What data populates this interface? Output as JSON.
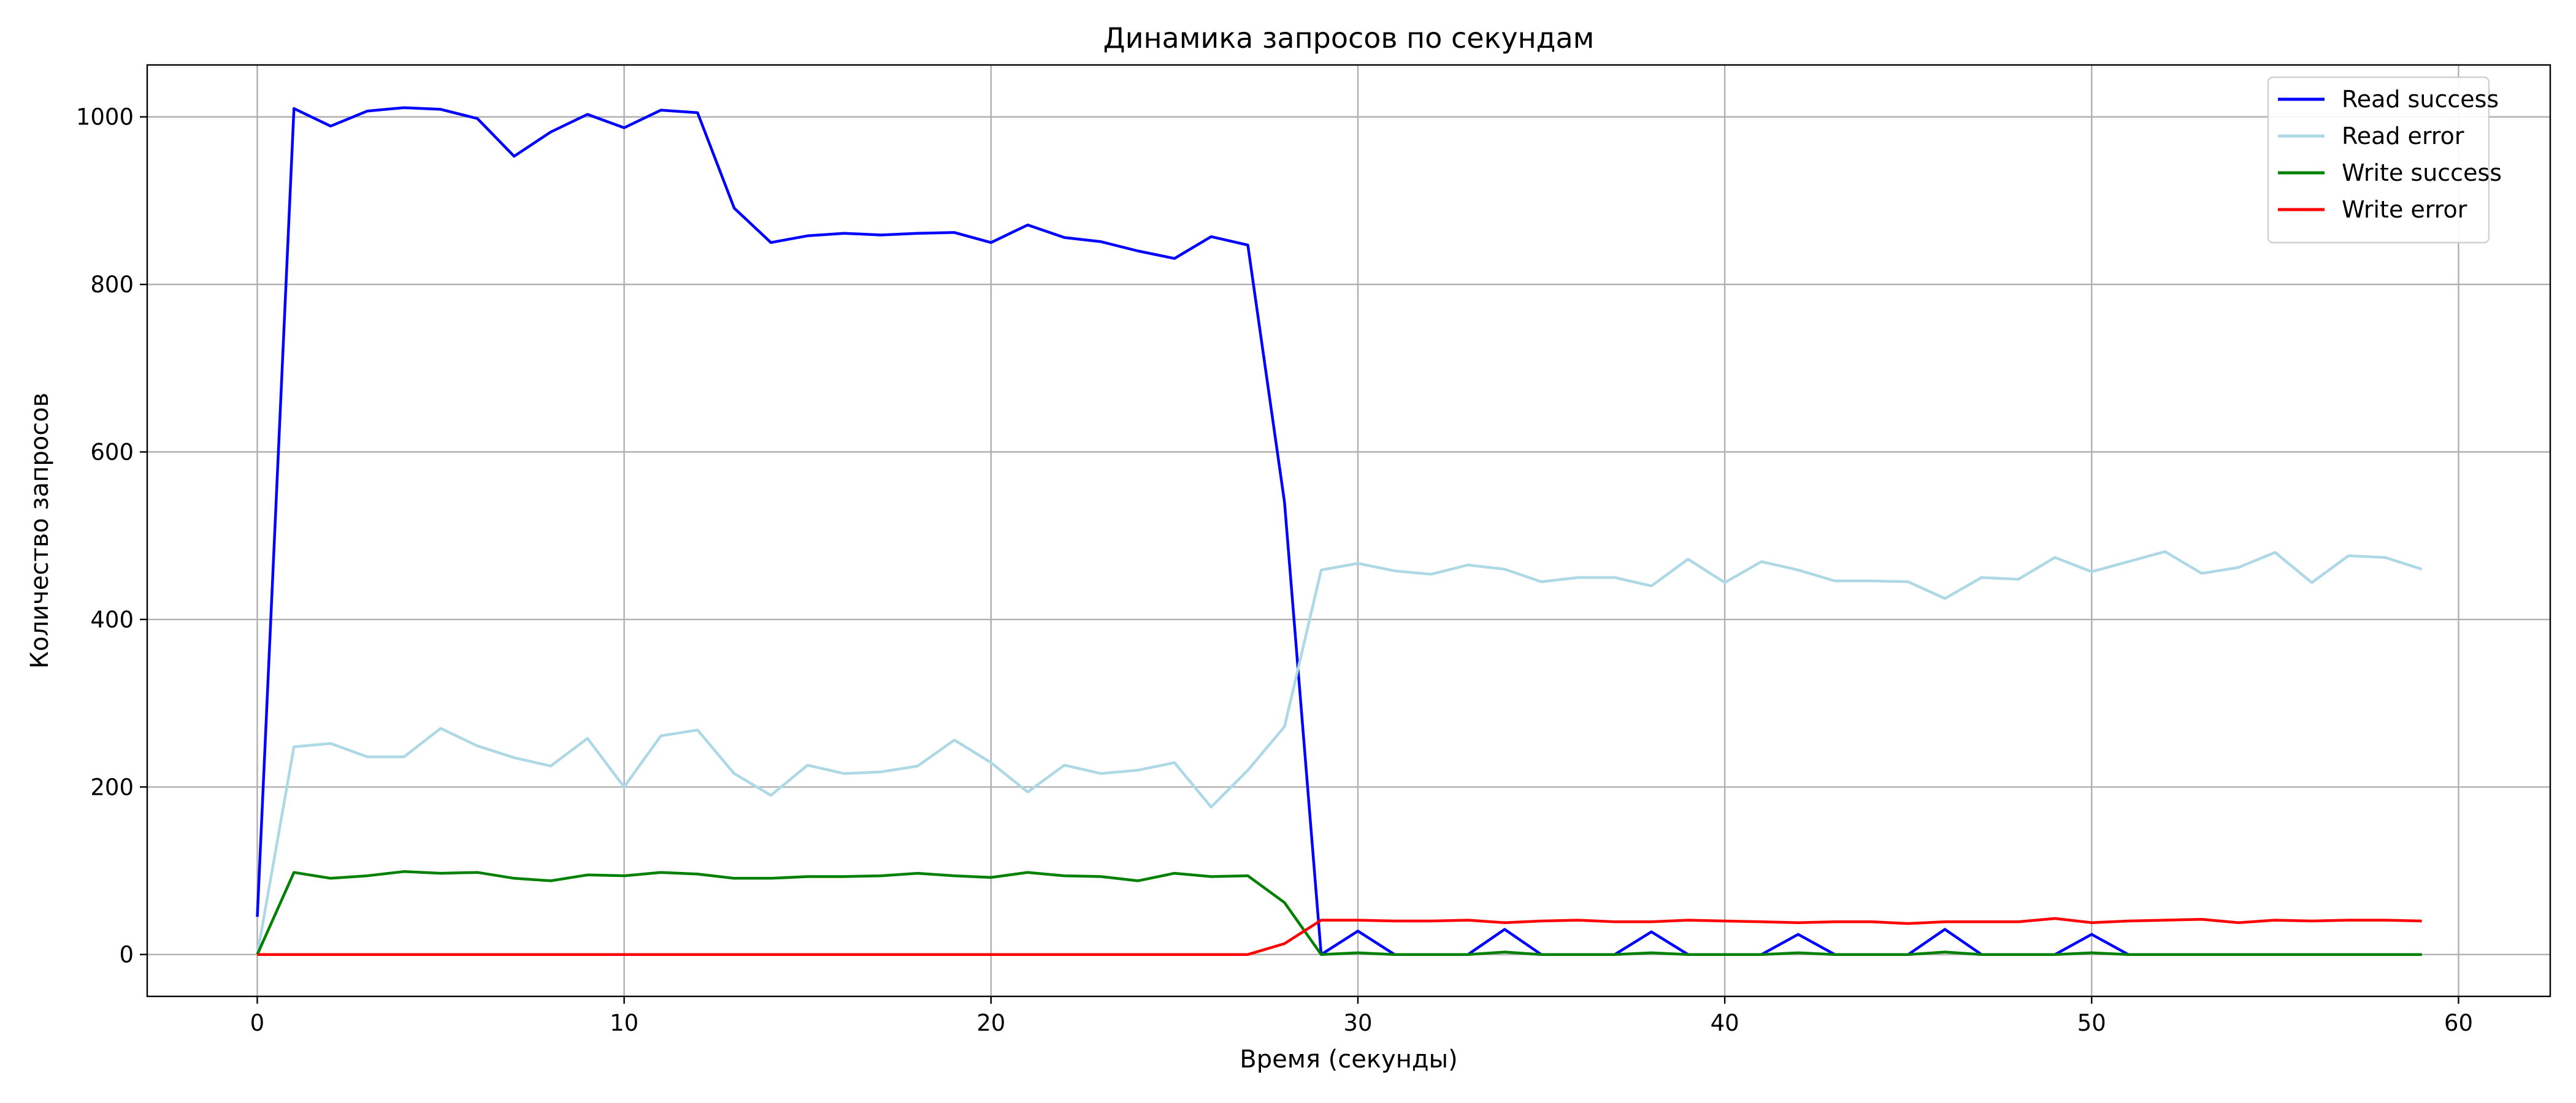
{
  "chart_data": {
    "type": "line",
    "title": "Динамика запросов по секундам",
    "xlabel": "Время (секунды)",
    "ylabel": "Количество запросов",
    "xlim": [
      -3,
      62.5
    ],
    "ylim": [
      -50,
      1062
    ],
    "xticks": [
      0,
      10,
      20,
      30,
      40,
      50,
      60
    ],
    "yticks": [
      0,
      200,
      400,
      600,
      800,
      1000
    ],
    "grid": true,
    "legend_position": "top-right",
    "x": [
      0,
      1,
      2,
      3,
      4,
      5,
      6,
      7,
      8,
      9,
      10,
      11,
      12,
      13,
      14,
      15,
      16,
      17,
      18,
      19,
      20,
      21,
      22,
      23,
      24,
      25,
      26,
      27,
      28,
      29,
      30,
      31,
      32,
      33,
      34,
      35,
      36,
      37,
      38,
      39,
      40,
      41,
      42,
      43,
      44,
      45,
      46,
      47,
      48,
      49,
      50,
      51,
      52,
      53,
      54,
      55,
      56,
      57,
      58,
      59
    ],
    "series": [
      {
        "name": "Read success",
        "color": "#0000ff",
        "values": [
          45,
          1010,
          989,
          1007,
          1011,
          1009,
          998,
          953,
          982,
          1003,
          987,
          1008,
          1005,
          891,
          850,
          858,
          861,
          859,
          861,
          862,
          850,
          871,
          856,
          851,
          840,
          831,
          857,
          847,
          540,
          0,
          28,
          0,
          0,
          0,
          30,
          0,
          0,
          0,
          27,
          0,
          0,
          0,
          24,
          0,
          0,
          0,
          30,
          0,
          0,
          0,
          24,
          0,
          0,
          0,
          0,
          0,
          0,
          0,
          0,
          0
        ]
      },
      {
        "name": "Read error",
        "color": "#add8e6",
        "values": [
          0,
          248,
          252,
          236,
          236,
          270,
          249,
          235,
          225,
          258,
          200,
          261,
          268,
          216,
          190,
          226,
          216,
          218,
          225,
          256,
          229,
          194,
          226,
          216,
          220,
          229,
          176,
          220,
          272,
          459,
          467,
          458,
          454,
          465,
          460,
          445,
          450,
          450,
          440,
          472,
          444,
          469,
          459,
          446,
          446,
          445,
          425,
          450,
          448,
          474,
          457,
          469,
          481,
          455,
          462,
          480,
          444,
          476,
          474,
          460
        ]
      },
      {
        "name": "Write success",
        "color": "#008000",
        "values": [
          0,
          98,
          91,
          94,
          99,
          97,
          98,
          91,
          88,
          95,
          94,
          98,
          96,
          91,
          91,
          93,
          93,
          94,
          97,
          94,
          92,
          98,
          94,
          93,
          88,
          97,
          93,
          94,
          62,
          0,
          2,
          0,
          0,
          0,
          3,
          0,
          0,
          0,
          2,
          0,
          0,
          0,
          2,
          0,
          0,
          0,
          3,
          0,
          0,
          0,
          2,
          0,
          0,
          0,
          0,
          0,
          0,
          0,
          0,
          0
        ]
      },
      {
        "name": "Write error",
        "color": "#ff0000",
        "values": [
          0,
          0,
          0,
          0,
          0,
          0,
          0,
          0,
          0,
          0,
          0,
          0,
          0,
          0,
          0,
          0,
          0,
          0,
          0,
          0,
          0,
          0,
          0,
          0,
          0,
          0,
          0,
          0,
          13,
          41,
          41,
          40,
          40,
          41,
          38,
          40,
          41,
          39,
          39,
          41,
          40,
          39,
          38,
          39,
          39,
          37,
          39,
          39,
          39,
          43,
          38,
          40,
          41,
          42,
          38,
          41,
          40,
          41,
          41,
          40
        ]
      }
    ]
  }
}
